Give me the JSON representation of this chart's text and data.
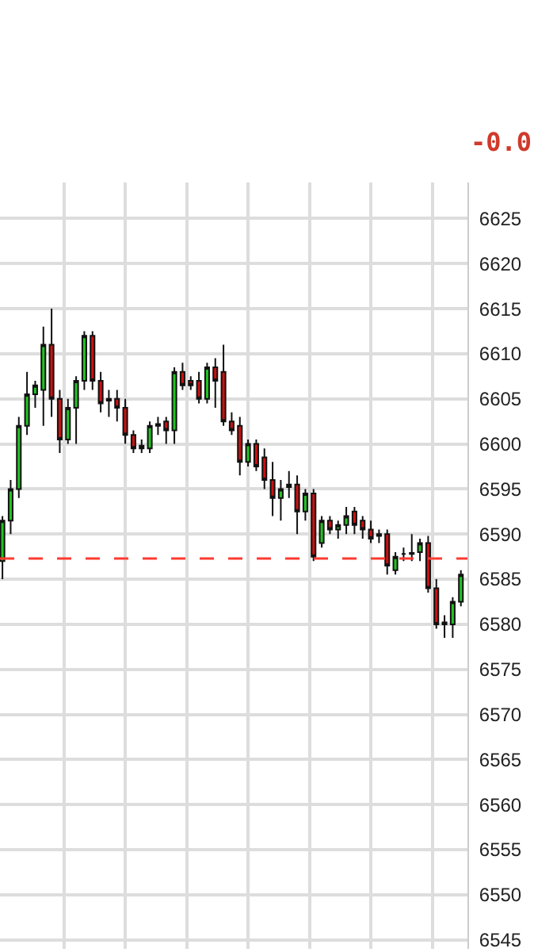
{
  "chart_data": {
    "type": "candlestick",
    "categories": [
      null,
      null,
      null,
      null,
      null,
      null,
      null,
      null,
      null,
      null,
      null,
      null,
      null,
      null,
      null,
      null,
      null,
      null,
      null,
      null,
      null,
      null,
      null,
      null,
      null,
      null,
      null,
      null,
      null,
      null,
      null,
      null,
      null,
      null,
      null,
      null,
      null,
      null,
      null,
      null,
      null,
      null,
      null,
      null,
      null,
      null,
      null,
      null,
      null,
      null,
      null,
      null,
      null,
      null,
      null,
      null,
      null
    ],
    "ohlc": [
      [
        6587,
        6592,
        6585,
        6591.5
      ],
      [
        6591.5,
        6596,
        6590,
        6595
      ],
      [
        6595,
        6603,
        6594,
        6602
      ],
      [
        6602,
        6608,
        6601,
        6605.5
      ],
      [
        6605.5,
        6607,
        6604,
        6606.5
      ],
      [
        6606,
        6613,
        6602,
        6611
      ],
      [
        6611,
        6615,
        6603,
        6605
      ],
      [
        6605,
        6606,
        6599,
        6600.5
      ],
      [
        6600.5,
        6605,
        6600,
        6604
      ],
      [
        6604,
        6607.5,
        6600,
        6607
      ],
      [
        6607,
        6612.5,
        6606,
        6612
      ],
      [
        6612,
        6612.5,
        6606,
        6607
      ],
      [
        6607,
        6608,
        6603.5,
        6604.5
      ],
      [
        6605,
        6606,
        6603,
        6604.8
      ],
      [
        6605,
        6606,
        6602.5,
        6604
      ],
      [
        6604,
        6605,
        6600,
        6601
      ],
      [
        6601,
        6601.5,
        6599,
        6599.5
      ],
      [
        6599.8,
        6600.5,
        6599,
        6599.5
      ],
      [
        6599.5,
        6602.5,
        6599,
        6602
      ],
      [
        6602,
        6603,
        6601,
        6602.2
      ],
      [
        6602.5,
        6603,
        6600,
        6601.5
      ],
      [
        6601.5,
        6608.5,
        6600,
        6608
      ],
      [
        6608,
        6609,
        6606,
        6606.5
      ],
      [
        6607,
        6607.5,
        6606,
        6606.5
      ],
      [
        6607,
        6608,
        6604.5,
        6605
      ],
      [
        6605,
        6609,
        6604.5,
        6608.5
      ],
      [
        6608.5,
        6609.5,
        6604,
        6607
      ],
      [
        6608,
        6611,
        6602,
        6602.5
      ],
      [
        6602.5,
        6603.5,
        6601,
        6601.5
      ],
      [
        6602,
        6603,
        6596.5,
        6598
      ],
      [
        6598,
        6600.5,
        6597.5,
        6600
      ],
      [
        6600,
        6600.5,
        6597,
        6597.5
      ],
      [
        6598.5,
        6599.5,
        6595,
        6596
      ],
      [
        6596,
        6598,
        6592,
        6594
      ],
      [
        6594,
        6596,
        6591.5,
        6595
      ],
      [
        6595.5,
        6597,
        6594,
        6595.2
      ],
      [
        6595.5,
        6596.5,
        6590,
        6592.5
      ],
      [
        6592.5,
        6595,
        6591.5,
        6594.5
      ],
      [
        6594.5,
        6595,
        6587,
        6587.5
      ],
      [
        6589,
        6592,
        6588.5,
        6591.5
      ],
      [
        6591.5,
        6592,
        6590,
        6590.5
      ],
      [
        6590.5,
        6591.5,
        6589.5,
        6591
      ],
      [
        6591,
        6593,
        6590,
        6592
      ],
      [
        6592.5,
        6593,
        6590,
        6591
      ],
      [
        6591.5,
        6592,
        6589.5,
        6590.5
      ],
      [
        6590.5,
        6591.5,
        6589,
        6589.5
      ],
      [
        6590,
        6590.5,
        6589,
        6589.8
      ],
      [
        6590,
        6590.5,
        6585.5,
        6586.5
      ],
      [
        6586,
        6588,
        6585.5,
        6587.5
      ],
      [
        6587.8,
        6588.5,
        6587,
        6587.8
      ],
      [
        6587.8,
        6590,
        6587,
        6587.9
      ],
      [
        6588,
        6589.5,
        6587,
        6589
      ],
      [
        6589,
        6589.8,
        6583.5,
        6584
      ],
      [
        6584,
        6585,
        6579.5,
        6580
      ],
      [
        6580,
        6581,
        6578.5,
        6580.2
      ],
      [
        6580,
        6583,
        6578.5,
        6582.5
      ],
      [
        6582.5,
        6586,
        6582,
        6585.5
      ]
    ],
    "ylim": [
      6544,
      6629
    ],
    "yticks": [
      6545,
      6550,
      6555,
      6560,
      6565,
      6570,
      6575,
      6580,
      6585,
      6590,
      6595,
      6600,
      6605,
      6610,
      6615,
      6620,
      6625
    ],
    "ref_lines": [
      {
        "axis": "y",
        "value": 6587.3,
        "color": "#ff3b30",
        "line_style": "dashed"
      }
    ],
    "annotations": [
      "-0.0"
    ],
    "grid": true,
    "tick_labels": "y"
  }
}
